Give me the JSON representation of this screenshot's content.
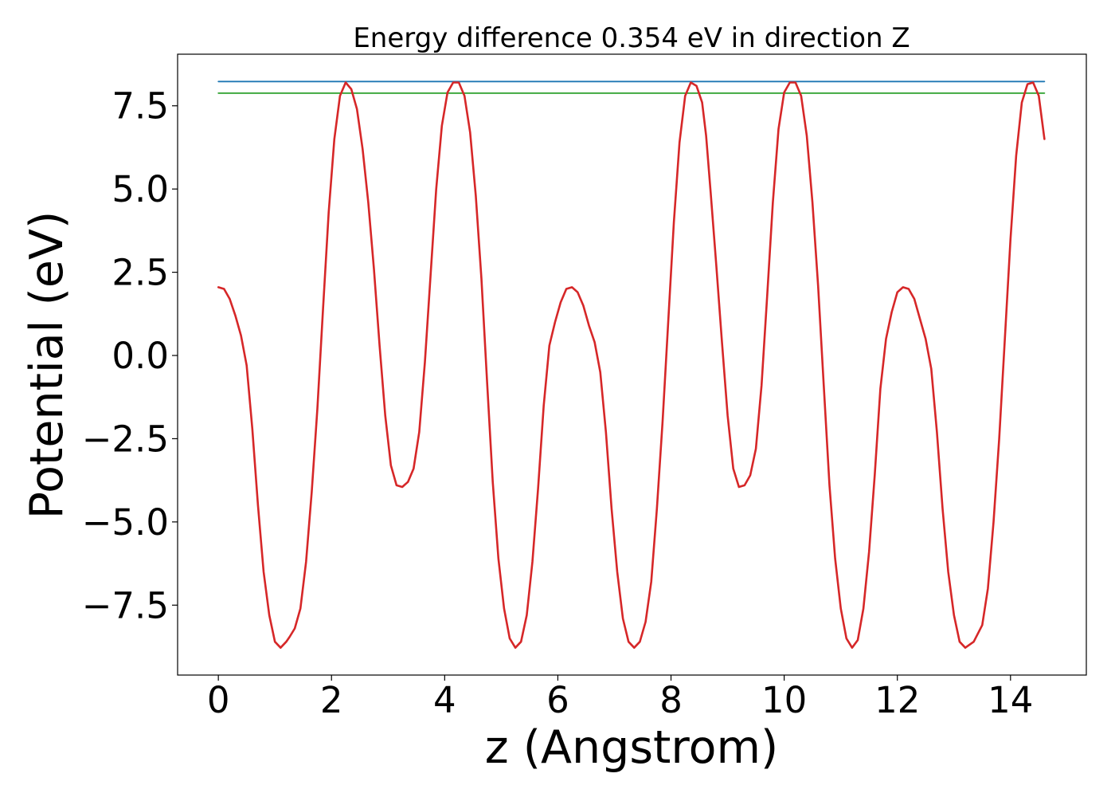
{
  "chart_data": {
    "type": "line",
    "title": "Energy difference 0.354 eV in direction Z",
    "xlabel": "z (Angstrom)",
    "ylabel": "Potential (eV)",
    "xlim": [
      -0.72,
      15.34
    ],
    "ylim": [
      -9.6,
      9.05
    ],
    "xticks": [
      0,
      2,
      4,
      6,
      8,
      10,
      12,
      14
    ],
    "xtick_labels": [
      "0",
      "2",
      "4",
      "6",
      "8",
      "10",
      "12",
      "14"
    ],
    "yticks": [
      -7.5,
      -5.0,
      -2.5,
      0.0,
      2.5,
      5.0,
      7.5
    ],
    "ytick_labels": [
      "−7.5",
      "−5.0",
      "−2.5",
      "0.0",
      "2.5",
      "5.0",
      "7.5"
    ],
    "grid": false,
    "series": [
      {
        "color": "#d62728",
        "x": [
          0.0,
          0.1,
          0.2,
          0.3,
          0.4,
          0.5,
          0.6,
          0.7,
          0.8,
          0.9,
          1.0,
          1.1,
          1.2,
          1.26,
          1.35,
          1.45,
          1.55,
          1.65,
          1.75,
          1.85,
          1.95,
          2.05,
          2.15,
          2.25,
          2.35,
          2.45,
          2.55,
          2.65,
          2.75,
          2.85,
          2.95,
          3.05,
          3.15,
          3.25,
          3.35,
          3.45,
          3.55,
          3.65,
          3.75,
          3.85,
          3.95,
          4.05,
          4.15,
          4.25,
          4.35,
          4.45,
          4.55,
          4.65,
          4.75,
          4.85,
          4.95,
          5.05,
          5.15,
          5.25,
          5.35,
          5.45,
          5.55,
          5.65,
          5.75,
          5.85,
          5.95,
          6.05,
          6.15,
          6.25,
          6.35,
          6.45,
          6.55,
          6.65,
          6.75,
          6.85,
          6.95,
          7.05,
          7.15,
          7.25,
          7.35,
          7.45,
          7.55,
          7.65,
          7.75,
          7.85,
          7.95,
          8.05,
          8.15,
          8.25,
          8.35,
          8.45,
          8.55,
          8.62,
          8.7,
          8.8,
          8.9,
          9.0,
          9.1,
          9.2,
          9.3,
          9.4,
          9.5,
          9.6,
          9.7,
          9.8,
          9.9,
          10.0,
          10.1,
          10.2,
          10.3,
          10.4,
          10.5,
          10.6,
          10.7,
          10.8,
          10.9,
          11.0,
          11.1,
          11.2,
          11.3,
          11.4,
          11.5,
          11.6,
          11.7,
          11.8,
          11.9,
          12.0,
          12.1,
          12.2,
          12.3,
          12.4,
          12.5,
          12.6,
          12.7,
          12.8,
          12.9,
          13.0,
          13.1,
          13.2,
          13.35,
          13.5,
          13.6,
          13.7,
          13.8,
          13.9,
          14.0,
          14.1,
          14.2,
          14.3,
          14.4,
          14.5,
          14.6
        ],
        "y": [
          2.05,
          2.0,
          1.7,
          1.2,
          0.6,
          -0.3,
          -2.2,
          -4.5,
          -6.5,
          -7.8,
          -8.6,
          -8.78,
          -8.6,
          -8.45,
          -8.2,
          -7.6,
          -6.2,
          -4.1,
          -1.6,
          1.4,
          4.3,
          6.5,
          7.8,
          8.2,
          8.0,
          7.4,
          6.2,
          4.6,
          2.6,
          0.3,
          -1.8,
          -3.3,
          -3.9,
          -3.95,
          -3.8,
          -3.4,
          -2.3,
          -0.2,
          2.4,
          5.0,
          6.9,
          7.9,
          8.2,
          8.2,
          7.8,
          6.7,
          4.8,
          2.3,
          -0.8,
          -3.8,
          -6.1,
          -7.6,
          -8.5,
          -8.78,
          -8.6,
          -7.8,
          -6.2,
          -4.0,
          -1.5,
          0.3,
          1.0,
          1.6,
          2.0,
          2.05,
          1.9,
          1.5,
          0.9,
          0.4,
          -0.5,
          -2.3,
          -4.6,
          -6.5,
          -7.9,
          -8.6,
          -8.78,
          -8.6,
          -8.0,
          -6.8,
          -4.6,
          -2.0,
          1.0,
          4.0,
          6.4,
          7.8,
          8.2,
          8.1,
          7.6,
          6.6,
          4.9,
          2.7,
          0.4,
          -1.8,
          -3.4,
          -3.95,
          -3.9,
          -3.6,
          -2.8,
          -0.9,
          1.8,
          4.6,
          6.8,
          7.9,
          8.2,
          8.2,
          7.8,
          6.6,
          4.6,
          2.1,
          -0.9,
          -3.9,
          -6.1,
          -7.6,
          -8.5,
          -8.78,
          -8.55,
          -7.6,
          -5.9,
          -3.6,
          -1.0,
          0.5,
          1.3,
          1.9,
          2.05,
          2.0,
          1.7,
          1.1,
          0.5,
          -0.4,
          -2.3,
          -4.6,
          -6.5,
          -7.8,
          -8.6,
          -8.78,
          -8.6,
          -8.1,
          -7.0,
          -5.0,
          -2.5,
          0.5,
          3.5,
          6.0,
          7.6,
          8.15,
          8.2,
          7.8,
          6.5
        ],
        "note_visible": false
      },
      {
        "color": "#1f77b4",
        "x": [
          0,
          14.6
        ],
        "y": [
          8.23,
          8.23
        ]
      },
      {
        "color": "#2ca02c",
        "x": [
          0,
          14.6
        ],
        "y": [
          7.88,
          7.88
        ]
      }
    ]
  }
}
